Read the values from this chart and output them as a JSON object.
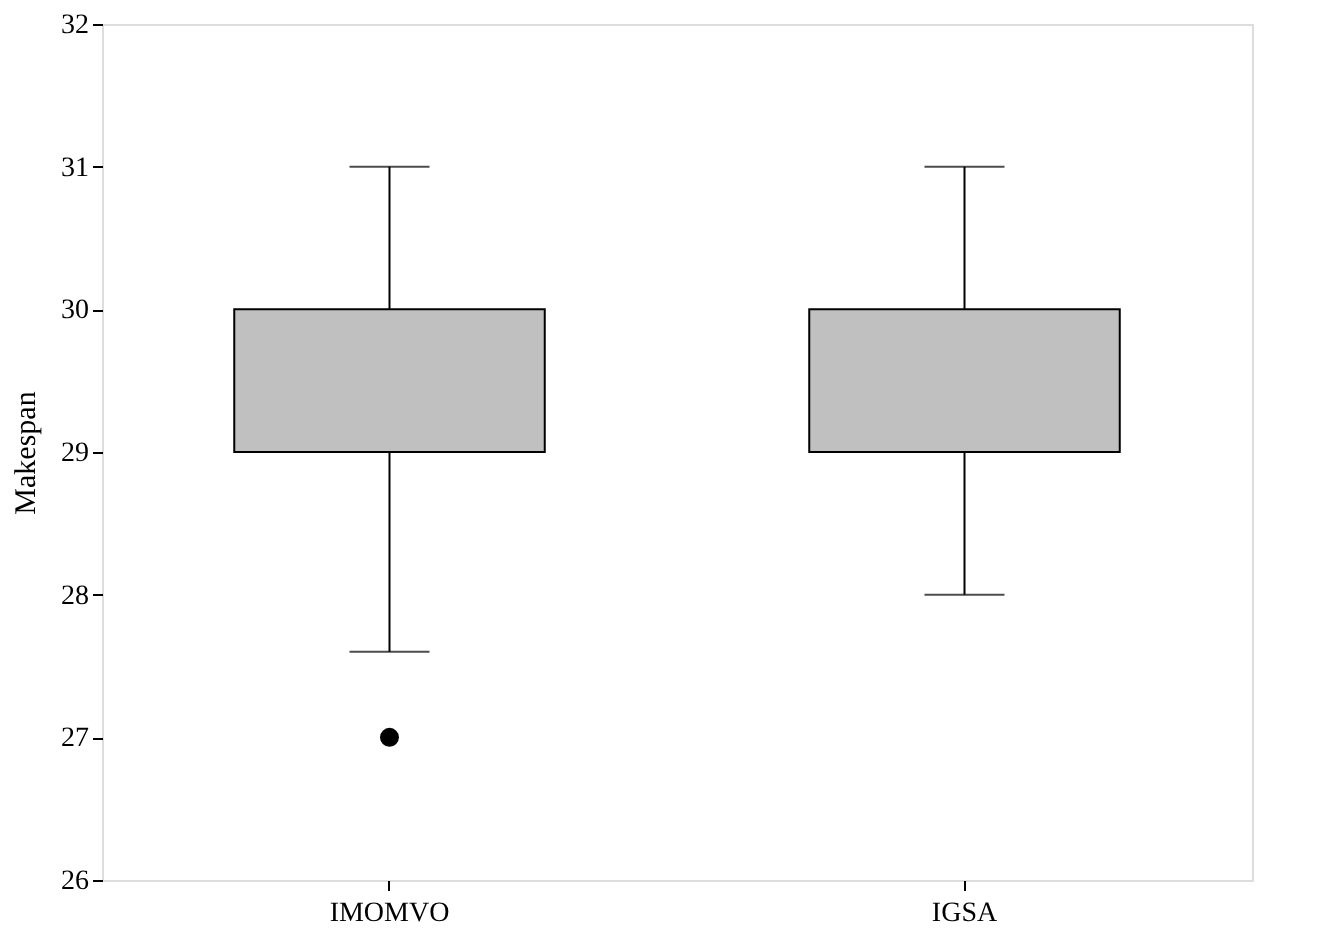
{
  "chart_data": {
    "type": "box",
    "ylabel": "Makespan",
    "categories": [
      "IMOMVO",
      "IGSA"
    ],
    "ylim": [
      26,
      32
    ],
    "yticks": [
      26,
      27,
      28,
      29,
      30,
      31,
      32
    ],
    "grid": false,
    "color": "#c0c0c0",
    "boxes": [
      {
        "low": 27.6,
        "q1": 29,
        "median": 29,
        "q3": 30,
        "high": 31,
        "outliers": [
          27
        ]
      },
      {
        "low": 28,
        "q1": 29,
        "median": 29,
        "q3": 30,
        "high": 31
      }
    ]
  }
}
